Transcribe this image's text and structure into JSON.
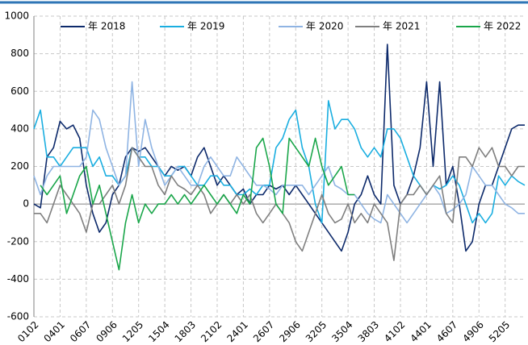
{
  "chart_data": {
    "type": "line",
    "categories": [
      "0102",
      null,
      null,
      null,
      "0401",
      null,
      null,
      null,
      "0607",
      null,
      null,
      null,
      "0906",
      null,
      null,
      null,
      "1205",
      null,
      null,
      null,
      "1504",
      null,
      null,
      null,
      "1803",
      null,
      null,
      null,
      "2102",
      null,
      null,
      null,
      "2401",
      null,
      null,
      null,
      "2607",
      null,
      null,
      null,
      "2906",
      null,
      null,
      null,
      "3205",
      null,
      null,
      null,
      "3504",
      null,
      null,
      null,
      "3803",
      null,
      null,
      null,
      "4102",
      null,
      null,
      null,
      "4401",
      null,
      null,
      null,
      "4607",
      null,
      null,
      null,
      "4906",
      null,
      null,
      null,
      "5205",
      null,
      null,
      null
    ],
    "series": [
      {
        "name": "年 2018",
        "color": "#0d2a6b",
        "values": [
          0,
          -20,
          250,
          300,
          440,
          400,
          420,
          350,
          100,
          -50,
          -150,
          -100,
          50,
          100,
          250,
          300,
          280,
          300,
          250,
          200,
          150,
          200,
          180,
          200,
          150,
          250,
          300,
          200,
          100,
          150,
          100,
          50,
          80,
          0,
          50,
          50,
          100,
          80,
          100,
          50,
          100,
          50,
          0,
          -50,
          -100,
          -150,
          -200,
          -250,
          -150,
          0,
          50,
          150,
          50,
          0,
          850,
          100,
          0,
          50,
          150,
          300,
          650,
          200,
          650,
          100,
          200,
          0,
          -250,
          -200,
          0,
          100,
          100,
          200,
          300,
          400,
          420,
          420
        ]
      },
      {
        "name": "年 2019",
        "color": "#1aaee0",
        "values": [
          400,
          500,
          250,
          250,
          200,
          250,
          300,
          300,
          300,
          200,
          250,
          150,
          150,
          100,
          150,
          300,
          250,
          250,
          200,
          200,
          150,
          150,
          200,
          200,
          150,
          100,
          100,
          150,
          150,
          100,
          100,
          50,
          50,
          80,
          50,
          100,
          100,
          300,
          350,
          450,
          500,
          300,
          200,
          0,
          -100,
          550,
          400,
          450,
          450,
          400,
          300,
          250,
          300,
          250,
          400,
          400,
          350,
          250,
          150,
          100,
          50,
          100,
          80,
          100,
          150,
          100,
          0,
          -100,
          -50,
          -100,
          -50,
          150,
          100,
          150,
          120,
          100
        ]
      },
      {
        "name": "年 2020",
        "color": "#8fb4e3",
        "values": [
          150,
          50,
          150,
          200,
          200,
          200,
          200,
          200,
          250,
          500,
          450,
          300,
          200,
          100,
          150,
          650,
          200,
          450,
          300,
          200,
          100,
          150,
          200,
          150,
          100,
          100,
          200,
          250,
          200,
          150,
          150,
          250,
          200,
          150,
          100,
          100,
          80,
          50,
          100,
          100,
          100,
          100,
          50,
          100,
          150,
          200,
          100,
          80,
          50,
          50,
          0,
          -50,
          -80,
          -100,
          50,
          0,
          -50,
          -100,
          -50,
          0,
          50,
          100,
          50,
          -50,
          -30,
          0,
          50,
          200,
          150,
          100,
          100,
          50,
          0,
          -20,
          -50,
          -50
        ]
      },
      {
        "name": "年 2021",
        "color": "#7f7f7f",
        "values": [
          -50,
          -50,
          -100,
          0,
          100,
          50,
          0,
          -50,
          -150,
          0,
          0,
          50,
          100,
          0,
          100,
          300,
          250,
          200,
          200,
          100,
          50,
          150,
          100,
          80,
          50,
          100,
          50,
          -50,
          0,
          50,
          0,
          50,
          0,
          50,
          -50,
          -100,
          -50,
          0,
          -50,
          -100,
          -200,
          -250,
          -150,
          -50,
          50,
          -50,
          -100,
          -80,
          0,
          -100,
          -50,
          -100,
          0,
          -50,
          -100,
          -300,
          0,
          50,
          50,
          100,
          50,
          100,
          150,
          -50,
          -100,
          250,
          250,
          200,
          300,
          250,
          300,
          200,
          200,
          150,
          200,
          200
        ]
      },
      {
        "name": "年 2022",
        "color": "#1aa64a",
        "values": [
          null,
          100,
          50,
          100,
          150,
          -50,
          50,
          150,
          200,
          0,
          100,
          -50,
          -200,
          -350,
          -100,
          50,
          -100,
          0,
          -50,
          0,
          0,
          50,
          0,
          50,
          0,
          50,
          100,
          50,
          0,
          50,
          0,
          -50,
          50,
          0,
          300,
          350,
          200,
          0,
          -50,
          350,
          300,
          250,
          200,
          350,
          200,
          100,
          150,
          200,
          50,
          50,
          null,
          null,
          null,
          null,
          null,
          null,
          null,
          null,
          null,
          null,
          null,
          null,
          null,
          null,
          null,
          null,
          null,
          null,
          null,
          null,
          null,
          null,
          null,
          null,
          null,
          null
        ]
      }
    ],
    "ylim": [
      -600,
      1000
    ],
    "yticks": [
      -600,
      -400,
      -200,
      0,
      200,
      400,
      600,
      800,
      1000
    ],
    "grid": true
  }
}
